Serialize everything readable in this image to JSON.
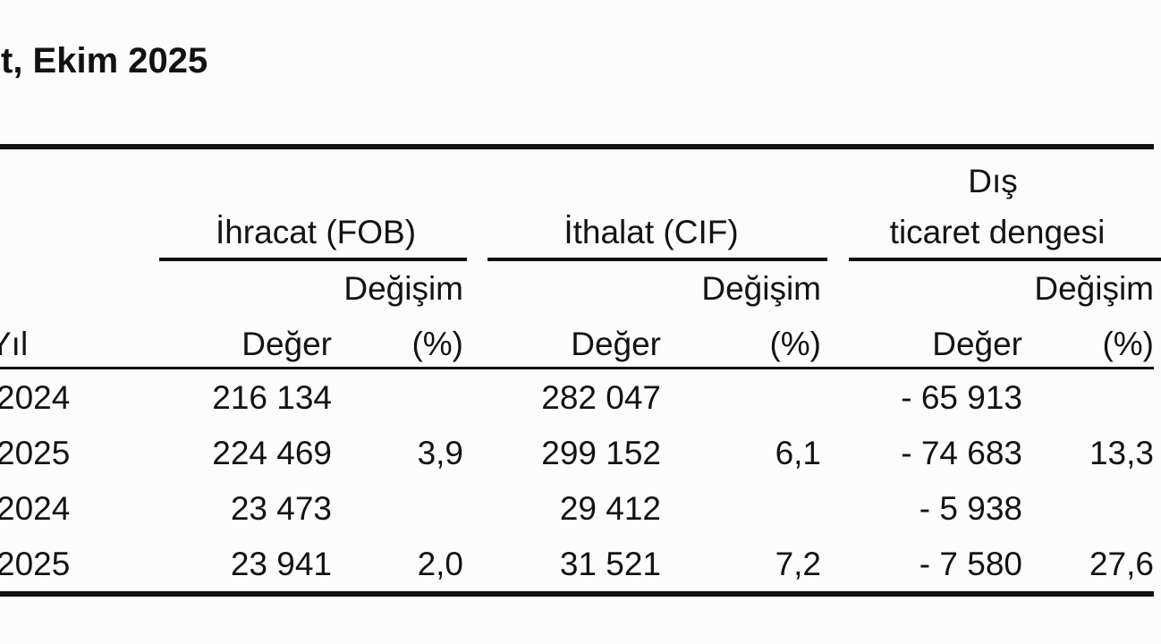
{
  "labels": {
    "title": "t, Ekim 2025",
    "exports_group": "İhracat (FOB)",
    "imports_group": "İthalat (CIF)",
    "balance_line1": "Dış",
    "balance_line2": "ticaret dengesi",
    "change_label": "Değişim",
    "year_label": "Yıl",
    "value_label": "Değer",
    "pct_label": "(%)"
  },
  "chart_data": {
    "type": "table",
    "title": "t, Ekim 2025",
    "column_groups": [
      "İhracat (FOB)",
      "İthalat (CIF)",
      "Dış ticaret dengesi"
    ],
    "columns": [
      "Yıl",
      "Değer",
      "Değişim (%)",
      "Değer",
      "Değişim (%)",
      "Değer",
      "Değişim (%)"
    ],
    "rows": [
      [
        "2024",
        "216 134",
        "",
        "282 047",
        "",
        "- 65 913",
        ""
      ],
      [
        "2025",
        "224 469",
        "3,9",
        "299 152",
        "6,1",
        "- 74 683",
        "13,3"
      ],
      [
        "2024",
        "23 473",
        "",
        "29 412",
        "",
        "- 5 938",
        ""
      ],
      [
        "2025",
        "23 941",
        "2,0",
        "31 521",
        "7,2",
        "- 7 580",
        "27,6"
      ]
    ]
  }
}
